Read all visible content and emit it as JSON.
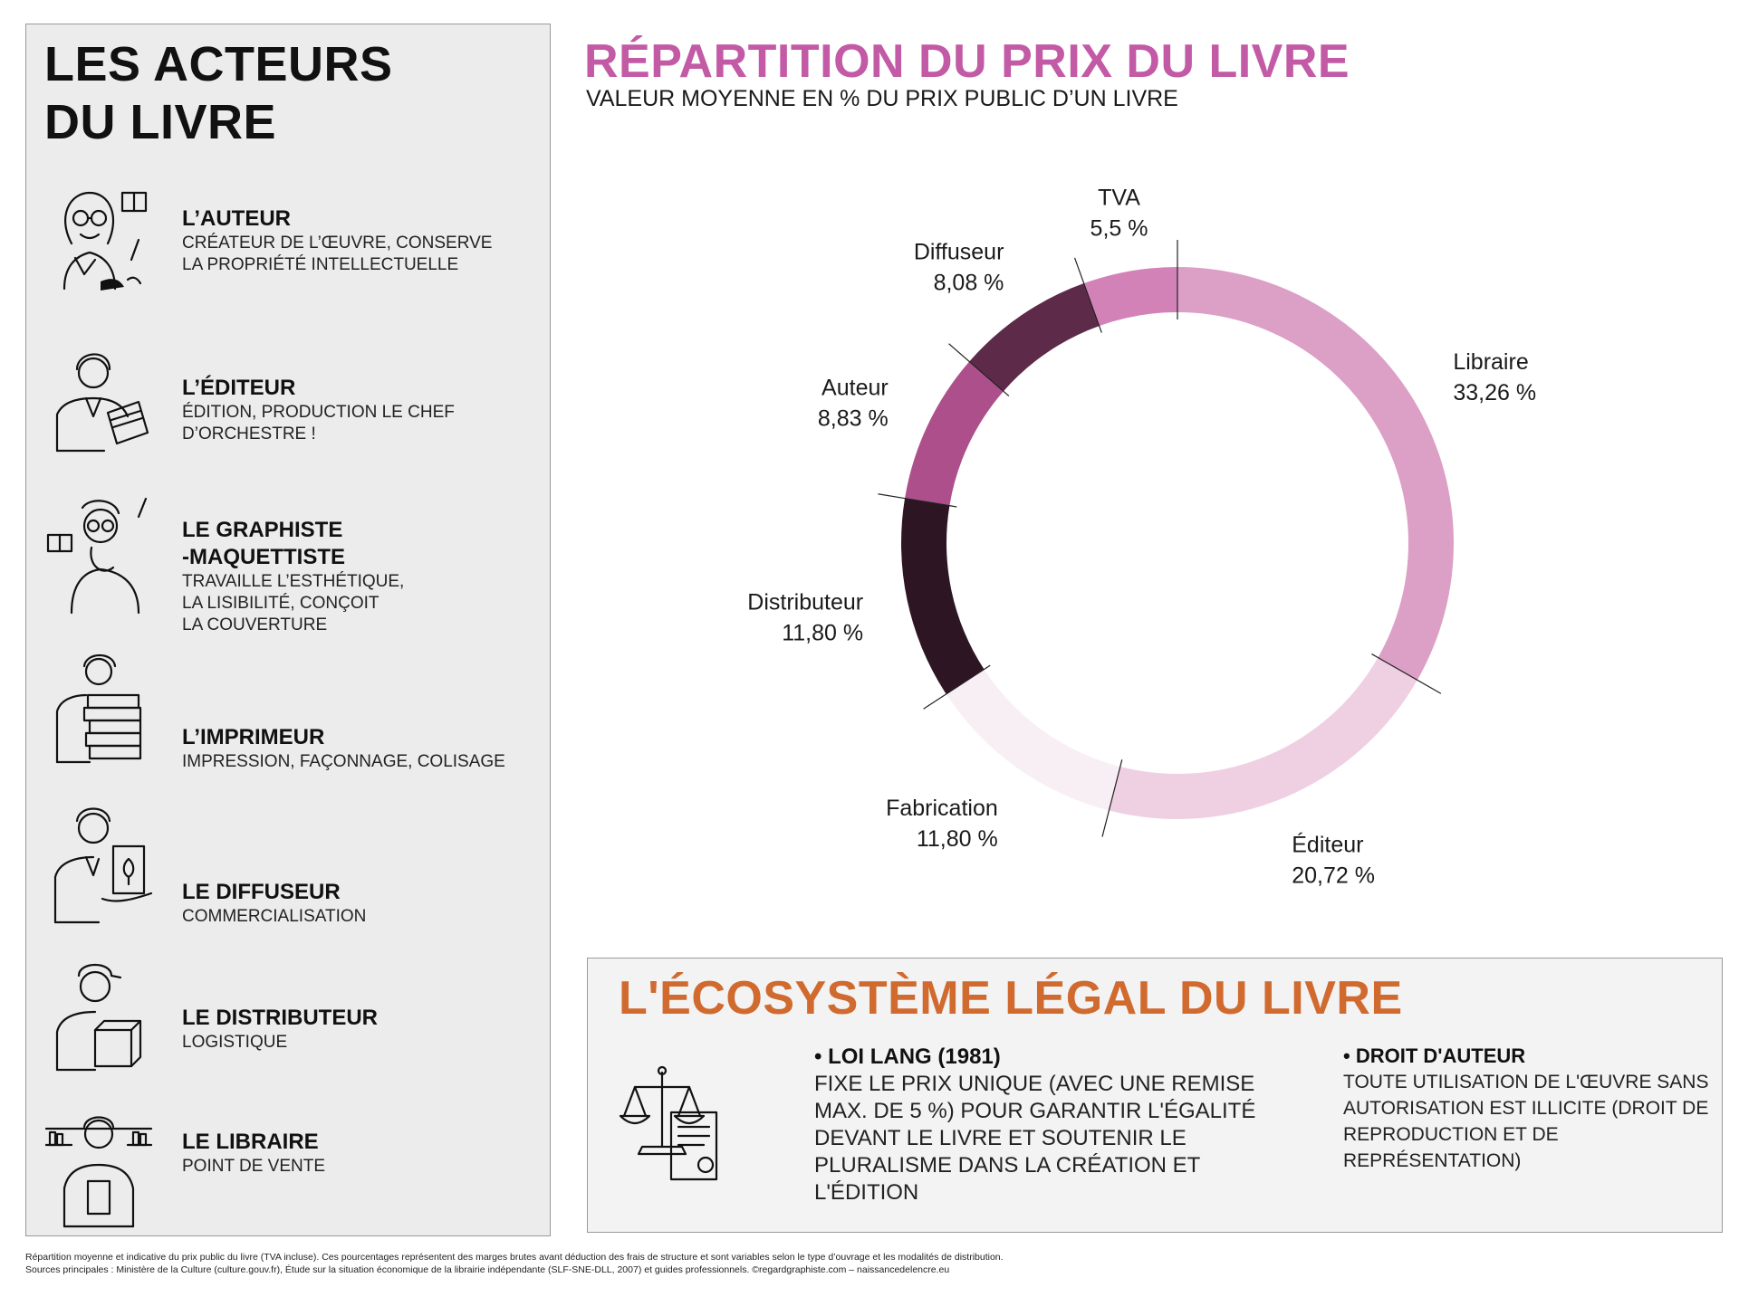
{
  "left_panel": {
    "title_line1": "LES ACTEURS",
    "title_line2": "DU LIVRE",
    "actors": [
      {
        "icon": "author-icon",
        "name": "L’AUTEUR",
        "desc1": "CRÉATEUR DE L’ŒUVRE, CONSERVE",
        "desc2": "LA PROPRIÉTÉ INTELLECTUELLE",
        "desc3": ""
      },
      {
        "icon": "publisher-icon",
        "name": "L’ÉDITEUR",
        "desc1": "ÉDITION, PRODUCTION LE CHEF",
        "desc2": "D’ORCHESTRE !",
        "desc3": ""
      },
      {
        "icon": "designer-icon",
        "name": "LE GRAPHISTE",
        "name2": "-MAQUETTISTE",
        "desc1": "TRAVAILLE L’ESTHÉTIQUE,",
        "desc2": "LA LISIBILITÉ, CONÇOIT",
        "desc3": "LA COUVERTURE"
      },
      {
        "icon": "printer-icon",
        "name": "L’IMPRIMEUR",
        "desc1": "IMPRESSION, FAÇONNAGE, COLISAGE",
        "desc2": "",
        "desc3": ""
      },
      {
        "icon": "distributor-promo-icon",
        "name": "LE DIFFUSEUR",
        "desc1": "COMMERCIALISATION",
        "desc2": "",
        "desc3": ""
      },
      {
        "icon": "delivery-icon",
        "name": "LE DISTRIBUTEUR",
        "desc1": "LOGISTIQUE",
        "desc2": "",
        "desc3": ""
      },
      {
        "icon": "bookseller-icon",
        "name": "LE LIBRAIRE",
        "desc1": "POINT DE VENTE",
        "desc2": "",
        "desc3": ""
      }
    ]
  },
  "price": {
    "title": "RÉPARTITION DU PRIX DU LIVRE",
    "subtitle": "VALEUR MOYENNE EN % DU PRIX PUBLIC D’UN LIVRE"
  },
  "chart_data": {
    "type": "pie",
    "donut": true,
    "title": "RÉPARTITION DU PRIX DU LIVRE",
    "subtitle": "VALEUR MOYENNE EN % DU PRIX PUBLIC D’UN LIVRE",
    "legend": "none",
    "slices": [
      {
        "label": "Libraire",
        "value": 33.26,
        "display": "33,26 %",
        "color": "#dc9fc6"
      },
      {
        "label": "Éditeur",
        "value": 20.72,
        "display": "20,72 %",
        "color": "#efd0e3"
      },
      {
        "label": "Fabrication",
        "value": 11.8,
        "display": "11,80 %",
        "color": "#f8eff4"
      },
      {
        "label": "Distributeur",
        "value": 11.8,
        "display": "11,80 %",
        "color": "#2e1523"
      },
      {
        "label": "Auteur",
        "value": 8.83,
        "display": "8,83 %",
        "color": "#ad4f8b"
      },
      {
        "label": "Diffuseur",
        "value": 8.08,
        "display": "8,08 %",
        "color": "#5e2a49"
      },
      {
        "label": "TVA",
        "value": 5.5,
        "display": "5,5 %",
        "color": "#d382b8"
      }
    ]
  },
  "eco": {
    "title": "L'ÉCOSYSTÈME LÉGAL DU LIVRE",
    "icon": "scales-justice-icon",
    "law1": {
      "title": "• LOI LANG (1981)",
      "lines": [
        "FIXE LE PRIX UNIQUE (AVEC UNE REMISE",
        "MAX. DE 5 %) POUR GARANTIR L'ÉGALITÉ",
        "DEVANT LE LIVRE ET SOUTENIR LE",
        "PLURALISME DANS LA CRÉATION ET",
        "L'ÉDITION"
      ]
    },
    "law2": {
      "title": "• DROIT D'AUTEUR",
      "lines": [
        "TOUTE UTILISATION DE L'ŒUVRE SANS",
        "AUTORISATION EST ILLICITE (DROIT DE",
        "REPRODUCTION ET DE REPRÉSENTATION)"
      ]
    }
  },
  "footnote": {
    "line1": "Répartition moyenne et indicative du prix public du livre (TVA incluse). Ces pourcentages représentent des marges brutes avant déduction des frais de structure et sont variables selon le type d’ouvrage et les modalités de distribution.",
    "line2": "Sources principales : Ministère de la Culture (culture.gouv.fr), Étude sur la situation économique de la librairie indépendante (SLF-SNE-DLL, 2007) et guides professionnels. ©regardgraphiste.com – naissancedelencre.eu"
  }
}
